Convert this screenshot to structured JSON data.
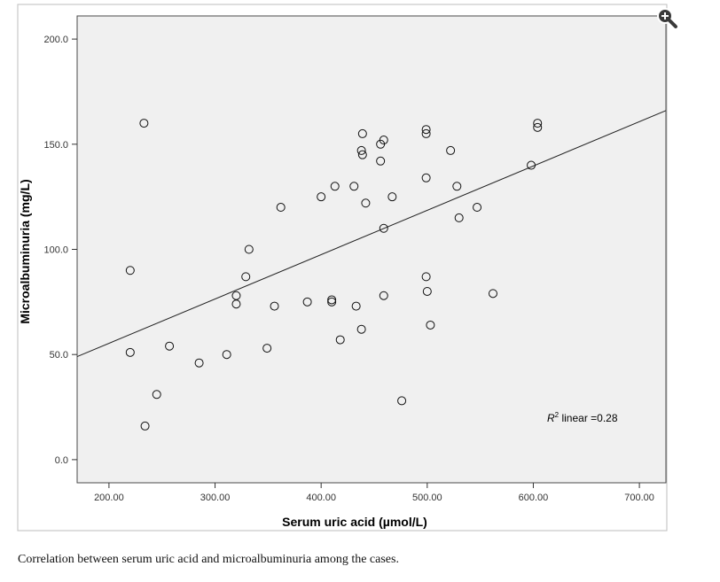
{
  "chart_data": {
    "type": "scatter",
    "xlabel": "Serum uric acid (µmol/L)",
    "ylabel": "Microalbuminuria (mg/L)",
    "xlim": [
      170,
      725
    ],
    "ylim": [
      -11,
      211
    ],
    "xticks": [
      200,
      300,
      400,
      500,
      600,
      700
    ],
    "xtick_labels": [
      "200.00",
      "300.00",
      "400.00",
      "500.00",
      "600.00",
      "700.00"
    ],
    "yticks": [
      0,
      50,
      100,
      150,
      200
    ],
    "ytick_labels": [
      "0.0",
      "50.0",
      "100.0",
      "150.0",
      "200.0"
    ],
    "grid": false,
    "fit_line": {
      "type": "linear",
      "x": [
        170,
        725
      ],
      "y": [
        49,
        166
      ]
    },
    "annotation": {
      "r_label": "R",
      "sup": "2",
      "text": " linear =0.28"
    },
    "points": [
      [
        233,
        160
      ],
      [
        220,
        90
      ],
      [
        220,
        51
      ],
      [
        234,
        16
      ],
      [
        245,
        31
      ],
      [
        257,
        54
      ],
      [
        285,
        46
      ],
      [
        311,
        50
      ],
      [
        320,
        78
      ],
      [
        320,
        74
      ],
      [
        329,
        87
      ],
      [
        332,
        100
      ],
      [
        349,
        53
      ],
      [
        356,
        73
      ],
      [
        362,
        120
      ],
      [
        387,
        75
      ],
      [
        400,
        125
      ],
      [
        410,
        75
      ],
      [
        410,
        76
      ],
      [
        413,
        130
      ],
      [
        418,
        57
      ],
      [
        431,
        130
      ],
      [
        433,
        73
      ],
      [
        438,
        62
      ],
      [
        438,
        147
      ],
      [
        439,
        155
      ],
      [
        439,
        145
      ],
      [
        442,
        122
      ],
      [
        456,
        150
      ],
      [
        456,
        142
      ],
      [
        459,
        152
      ],
      [
        459,
        110
      ],
      [
        459,
        78
      ],
      [
        467,
        125
      ],
      [
        476,
        28
      ],
      [
        499,
        157
      ],
      [
        499,
        155
      ],
      [
        499,
        134
      ],
      [
        499,
        87
      ],
      [
        500,
        80
      ],
      [
        503,
        64
      ],
      [
        522,
        147
      ],
      [
        528,
        130
      ],
      [
        530,
        115
      ],
      [
        547,
        120
      ],
      [
        562,
        79
      ],
      [
        598,
        140
      ],
      [
        604,
        160
      ],
      [
        604,
        158
      ]
    ]
  },
  "zoom_icon": "magnifier-plus-icon",
  "caption": "Correlation between serum uric acid and microalbuminuria among the cases."
}
